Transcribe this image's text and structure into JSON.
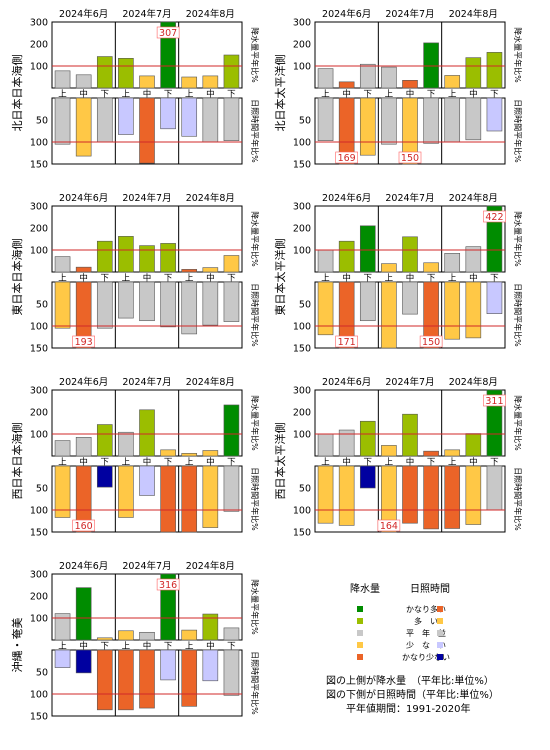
{
  "months": [
    "2024年6月",
    "2024年7月",
    "2024年8月"
  ],
  "dekads": [
    "上",
    "中",
    "下"
  ],
  "precip_axis_label": "降水量平年比%",
  "sun_axis_label": "日照時間平年比%",
  "precip_ticks": [
    "100",
    "200",
    "300"
  ],
  "sun_ticks": [
    "50",
    "100",
    "150"
  ],
  "colors": {
    "very_high": "#008c00",
    "high": "#9bbe00",
    "normal": "#c8c8c8",
    "low": "#ffc846",
    "very_low": "#eb6428",
    "sun_high": "#eb6428",
    "sun_slightly_high": "#ffc846",
    "sun_normal": "#c8c8c8",
    "sun_low": "#c8c8ff",
    "sun_very_low": "#0000a0",
    "baseline": "#d22828",
    "label_border": "#ff6060"
  },
  "chart_data": [
    {
      "type": "bar",
      "title": "北日本日本海側",
      "categories": [
        "6月上",
        "6月中",
        "6月下",
        "7月上",
        "7月中",
        "7月下",
        "8月上",
        "8月中",
        "8月下"
      ],
      "precipitation": [
        78,
        60,
        143,
        135,
        55,
        307,
        50,
        55,
        150
      ],
      "precip_class": [
        "normal",
        "normal",
        "high",
        "high",
        "low",
        "very_high",
        "low",
        "low",
        "high"
      ],
      "precip_labels": [
        "",
        "",
        "",
        "",
        "",
        "307",
        "",
        "",
        ""
      ],
      "sunshine": [
        105,
        132,
        100,
        83,
        148,
        70,
        87,
        100,
        97
      ],
      "sun_class": [
        "sun_normal",
        "sun_slightly_high",
        "sun_normal",
        "sun_low",
        "sun_high",
        "sun_low",
        "sun_low",
        "sun_normal",
        "sun_normal"
      ],
      "sun_labels": [
        "",
        "",
        "",
        "",
        "",
        "",
        "",
        "",
        ""
      ],
      "precip_ylim": [
        0,
        300
      ],
      "sun_ylim": [
        150,
        0
      ]
    },
    {
      "type": "bar",
      "title": "北日本太平洋側",
      "categories": [
        "6月上",
        "6月中",
        "6月下",
        "7月上",
        "7月中",
        "7月下",
        "8月上",
        "8月中",
        "8月下"
      ],
      "precipitation": [
        88,
        28,
        108,
        95,
        35,
        205,
        57,
        138,
        162
      ],
      "precip_class": [
        "normal",
        "very_low",
        "normal",
        "normal",
        "very_low",
        "very_high",
        "low",
        "high",
        "high"
      ],
      "precip_labels": [
        "",
        "",
        "",
        "",
        "",
        "",
        "",
        "",
        ""
      ],
      "sunshine": [
        97,
        169,
        130,
        105,
        150,
        103,
        100,
        95,
        75
      ],
      "sun_class": [
        "sun_normal",
        "sun_high",
        "sun_slightly_high",
        "sun_normal",
        "sun_slightly_high",
        "sun_normal",
        "sun_normal",
        "sun_normal",
        "sun_low"
      ],
      "sun_labels": [
        "",
        "169",
        "",
        "",
        "150",
        "",
        "",
        "",
        ""
      ],
      "precip_ylim": [
        0,
        300
      ],
      "sun_ylim": [
        150,
        0
      ]
    },
    {
      "type": "bar",
      "title": "東日本日本海側",
      "categories": [
        "6月上",
        "6月中",
        "6月下",
        "7月上",
        "7月中",
        "7月下",
        "8月上",
        "8月中",
        "8月下"
      ],
      "precipitation": [
        70,
        22,
        140,
        162,
        120,
        130,
        12,
        20,
        75
      ],
      "precip_class": [
        "normal",
        "very_low",
        "high",
        "high",
        "high",
        "high",
        "very_low",
        "low",
        "low"
      ],
      "precip_labels": [
        "",
        "",
        "",
        "",
        "",
        "",
        "",
        "",
        ""
      ],
      "sunshine": [
        105,
        193,
        105,
        82,
        88,
        102,
        118,
        98,
        90
      ],
      "sun_class": [
        "sun_slightly_high",
        "sun_high",
        "sun_normal",
        "sun_normal",
        "sun_normal",
        "sun_normal",
        "sun_normal",
        "sun_normal",
        "sun_normal"
      ],
      "sun_labels": [
        "",
        "193",
        "",
        "",
        "",
        "",
        "",
        "",
        ""
      ],
      "precip_ylim": [
        0,
        300
      ],
      "sun_ylim": [
        150,
        0
      ]
    },
    {
      "type": "bar",
      "title": "東日本太平洋側",
      "categories": [
        "6月上",
        "6月中",
        "6月下",
        "7月上",
        "7月中",
        "7月下",
        "8月上",
        "8月中",
        "8月下"
      ],
      "precipitation": [
        100,
        140,
        210,
        38,
        160,
        42,
        85,
        115,
        422
      ],
      "precip_class": [
        "normal",
        "high",
        "very_high",
        "low",
        "high",
        "low",
        "normal",
        "normal",
        "very_high"
      ],
      "precip_labels": [
        "",
        "",
        "",
        "",
        "",
        "",
        "",
        "",
        "422"
      ],
      "sunshine": [
        120,
        171,
        88,
        150,
        73,
        150,
        130,
        127,
        72
      ],
      "sun_class": [
        "sun_slightly_high",
        "sun_high",
        "sun_normal",
        "sun_slightly_high",
        "sun_normal",
        "sun_high",
        "sun_slightly_high",
        "sun_slightly_high",
        "sun_low"
      ],
      "sun_labels": [
        "",
        "171",
        "",
        "",
        "",
        "150",
        "",
        "",
        ""
      ],
      "precip_ylim": [
        0,
        300
      ],
      "sun_ylim": [
        150,
        0
      ]
    },
    {
      "type": "bar",
      "title": "西日本日本海側",
      "categories": [
        "6月上",
        "6月中",
        "6月下",
        "7月上",
        "7月中",
        "7月下",
        "8月上",
        "8月中",
        "8月下"
      ],
      "precipitation": [
        70,
        85,
        143,
        108,
        210,
        28,
        12,
        25,
        232
      ],
      "precip_class": [
        "normal",
        "normal",
        "high",
        "normal",
        "high",
        "low",
        "low",
        "low",
        "very_high"
      ],
      "precip_labels": [
        "",
        "",
        "",
        "",
        "",
        "",
        "",
        "",
        ""
      ],
      "sunshine": [
        117,
        160,
        48,
        117,
        67,
        150,
        150,
        140,
        103
      ],
      "sun_class": [
        "sun_slightly_high",
        "sun_high",
        "sun_very_low",
        "sun_slightly_high",
        "sun_low",
        "sun_high",
        "sun_high",
        "sun_slightly_high",
        "sun_normal"
      ],
      "sun_labels": [
        "",
        "160",
        "",
        "",
        "",
        "",
        "",
        "",
        ""
      ],
      "precip_ylim": [
        0,
        300
      ],
      "sun_ylim": [
        150,
        0
      ]
    },
    {
      "type": "bar",
      "title": "西日本太平洋側",
      "categories": [
        "6月上",
        "6月中",
        "6月下",
        "7月上",
        "7月中",
        "7月下",
        "8月上",
        "8月中",
        "8月下"
      ],
      "precipitation": [
        100,
        118,
        158,
        48,
        190,
        22,
        28,
        102,
        311
      ],
      "precip_class": [
        "normal",
        "normal",
        "high",
        "low",
        "high",
        "very_low",
        "low",
        "high",
        "very_high"
      ],
      "precip_labels": [
        "",
        "",
        "",
        "",
        "",
        "",
        "",
        "",
        "311"
      ],
      "sunshine": [
        130,
        135,
        50,
        164,
        130,
        143,
        142,
        133,
        100
      ],
      "sun_class": [
        "sun_slightly_high",
        "sun_slightly_high",
        "sun_very_low",
        "sun_slightly_high",
        "sun_high",
        "sun_high",
        "sun_high",
        "sun_slightly_high",
        "sun_normal"
      ],
      "sun_labels": [
        "",
        "",
        "",
        "164",
        "",
        "",
        "",
        "",
        ""
      ],
      "precip_ylim": [
        0,
        300
      ],
      "sun_ylim": [
        150,
        0
      ]
    },
    {
      "type": "bar",
      "title": "沖縄・奄美",
      "categories": [
        "6月上",
        "6月中",
        "6月下",
        "7月上",
        "7月中",
        "7月下",
        "8月上",
        "8月中",
        "8月下"
      ],
      "precipitation": [
        120,
        238,
        10,
        42,
        35,
        316,
        45,
        118,
        55
      ],
      "precip_class": [
        "normal",
        "very_high",
        "low",
        "low",
        "normal",
        "very_high",
        "low",
        "high",
        "normal"
      ],
      "precip_labels": [
        "",
        "",
        "",
        "",
        "",
        "316",
        "",
        "",
        ""
      ],
      "sunshine": [
        40,
        52,
        136,
        136,
        132,
        68,
        128,
        70,
        103
      ],
      "sun_class": [
        "sun_low",
        "sun_very_low",
        "sun_high",
        "sun_high",
        "sun_high",
        "sun_low",
        "sun_high",
        "sun_low",
        "sun_normal"
      ],
      "sun_labels": [
        "",
        "",
        "",
        "",
        "",
        "",
        "",
        "",
        ""
      ],
      "precip_ylim": [
        0,
        300
      ],
      "sun_ylim": [
        150,
        0
      ]
    }
  ],
  "legend": {
    "precip_header": "降水量",
    "sun_header": "日照時間",
    "items": [
      {
        "label": "かなり多い",
        "precip": "very_high",
        "sun": "sun_high"
      },
      {
        "label": "多　い",
        "precip": "high",
        "sun": "sun_slightly_high"
      },
      {
        "label": "平　年　並",
        "precip": "normal",
        "sun": "sun_normal"
      },
      {
        "label": "少　な　い",
        "precip": "low",
        "sun": "sun_low"
      },
      {
        "label": "かなり少ない",
        "precip": "very_low",
        "sun": "sun_very_low"
      }
    ],
    "note1": "図の上側が降水量　（平年比:単位%）",
    "note2": "図の下側が日照時間（平年比:単位%）",
    "note3": "平年値期間：1991-2020年"
  }
}
